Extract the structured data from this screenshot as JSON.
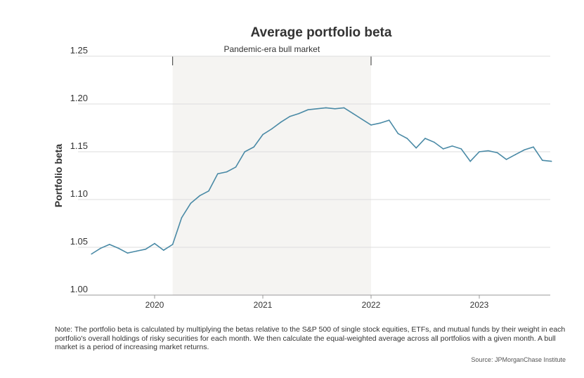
{
  "chart_data": {
    "type": "line",
    "title": "Average portfolio beta",
    "ylabel": "Portfolio beta",
    "xlabel": "",
    "ylim": [
      1.0,
      1.25
    ],
    "yticks": [
      "1.00",
      "1.05",
      "1.10",
      "1.15",
      "1.20",
      "1.25"
    ],
    "xticks": [
      "2020",
      "2021",
      "2022",
      "2023"
    ],
    "start_month": "2019-06",
    "x": [
      "2019-06",
      "2019-07",
      "2019-08",
      "2019-09",
      "2019-10",
      "2019-11",
      "2019-12",
      "2020-01",
      "2020-02",
      "2020-03",
      "2020-04",
      "2020-05",
      "2020-06",
      "2020-07",
      "2020-08",
      "2020-09",
      "2020-10",
      "2020-11",
      "2020-12",
      "2021-01",
      "2021-02",
      "2021-03",
      "2021-04",
      "2021-05",
      "2021-06",
      "2021-07",
      "2021-08",
      "2021-09",
      "2021-10",
      "2021-11",
      "2021-12",
      "2022-01",
      "2022-02",
      "2022-03",
      "2022-04",
      "2022-05",
      "2022-06",
      "2022-07",
      "2022-08",
      "2022-09",
      "2022-10",
      "2022-11",
      "2022-12",
      "2023-01",
      "2023-02",
      "2023-03",
      "2023-04",
      "2023-05",
      "2023-06",
      "2023-07",
      "2023-08",
      "2023-09"
    ],
    "series": [
      {
        "name": "Portfolio beta",
        "color": "#4a8aa6",
        "values": [
          1.043,
          1.049,
          1.053,
          1.049,
          1.044,
          1.046,
          1.048,
          1.054,
          1.047,
          1.053,
          1.081,
          1.096,
          1.104,
          1.109,
          1.127,
          1.129,
          1.134,
          1.15,
          1.155,
          1.168,
          1.174,
          1.181,
          1.187,
          1.19,
          1.194,
          1.195,
          1.196,
          1.195,
          1.196,
          1.19,
          1.184,
          1.178,
          1.18,
          1.183,
          1.169,
          1.164,
          1.154,
          1.164,
          1.16,
          1.153,
          1.156,
          1.153,
          1.14,
          1.15,
          1.151,
          1.149,
          1.142,
          1.147,
          1.152,
          1.155,
          1.141,
          1.14
        ]
      }
    ],
    "annotation": {
      "label": "Pandemic-era bull market",
      "start": "2020-03",
      "end": "2022-01",
      "color": "#f5f4f2"
    },
    "grid": true
  },
  "note": "Note: The portfolio beta is calculated by multiplying the betas relative to the S&P 500 of single stock equities, ETFs, and mutual funds by their weight in each portfolio's overall holdings of risky securities for each month. We then calculate the equal-weighted average across all portfolios with a given month. A bull market     is a period of increasing market returns.",
  "source": "Source: JPMorganChase Institute"
}
